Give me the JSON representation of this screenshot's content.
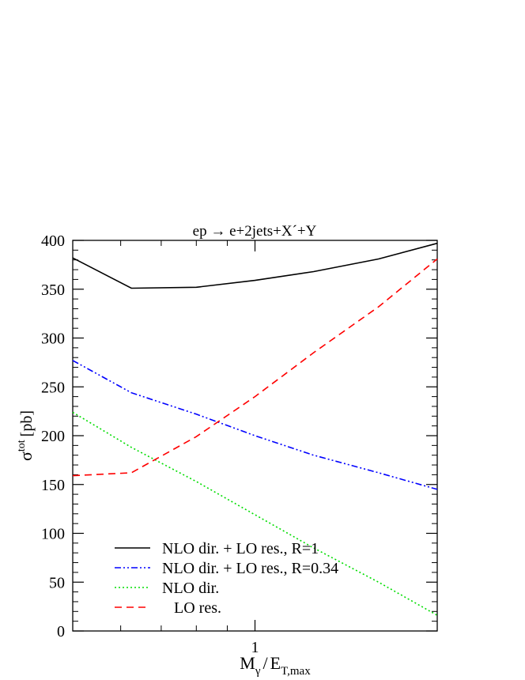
{
  "chart_data": {
    "type": "line",
    "title": "ep → e+2jets+X´+Y",
    "xlabel": {
      "main": "M",
      "sub1": "γ",
      "slash": "/",
      "e": "E",
      "sub2": "T,max"
    },
    "ylabel": {
      "main": "σ",
      "sup": "tot",
      "unit": "[pb]"
    },
    "xscale": "log",
    "xlim": [
      0.5,
      2.0
    ],
    "ylim": [
      0,
      400
    ],
    "xticks_major": [
      1
    ],
    "xtick_labels": [
      "1"
    ],
    "yticks": [
      0,
      50,
      100,
      150,
      200,
      250,
      300,
      350,
      400
    ],
    "ytick_labels": [
      "0",
      "50",
      "100",
      "150",
      "200",
      "250",
      "300",
      "350",
      "400"
    ],
    "grid": false,
    "legend_position": "bottom-left",
    "series": [
      {
        "name": "NLO dir. + LO res., R=1",
        "color": "#000000",
        "dash": "solid",
        "x": [
          0.5,
          0.625,
          0.8,
          1.0,
          1.25,
          1.6,
          2.0
        ],
        "y": [
          382,
          351,
          352,
          359,
          368,
          381,
          397
        ]
      },
      {
        "name": "NLO dir. + LO res., R=0.34",
        "color": "#0000ff",
        "dash": "dash-dot-dot",
        "x": [
          0.5,
          0.625,
          0.8,
          1.0,
          1.25,
          1.6,
          2.0
        ],
        "y": [
          277,
          244,
          222,
          200,
          180,
          162,
          145
        ]
      },
      {
        "name": "NLO dir.",
        "color": "#00dd00",
        "dash": "dotted",
        "x": [
          0.5,
          0.625,
          0.8,
          1.0,
          1.25,
          1.6,
          2.0
        ],
        "y": [
          224,
          188,
          153,
          119,
          85,
          50,
          16
        ]
      },
      {
        "name": "   LO res.",
        "color": "#ff0000",
        "dash": "dashed",
        "x": [
          0.5,
          0.625,
          0.8,
          1.0,
          1.25,
          1.6,
          2.0
        ],
        "y": [
          159,
          162,
          199,
          240,
          285,
          332,
          381
        ]
      }
    ]
  }
}
